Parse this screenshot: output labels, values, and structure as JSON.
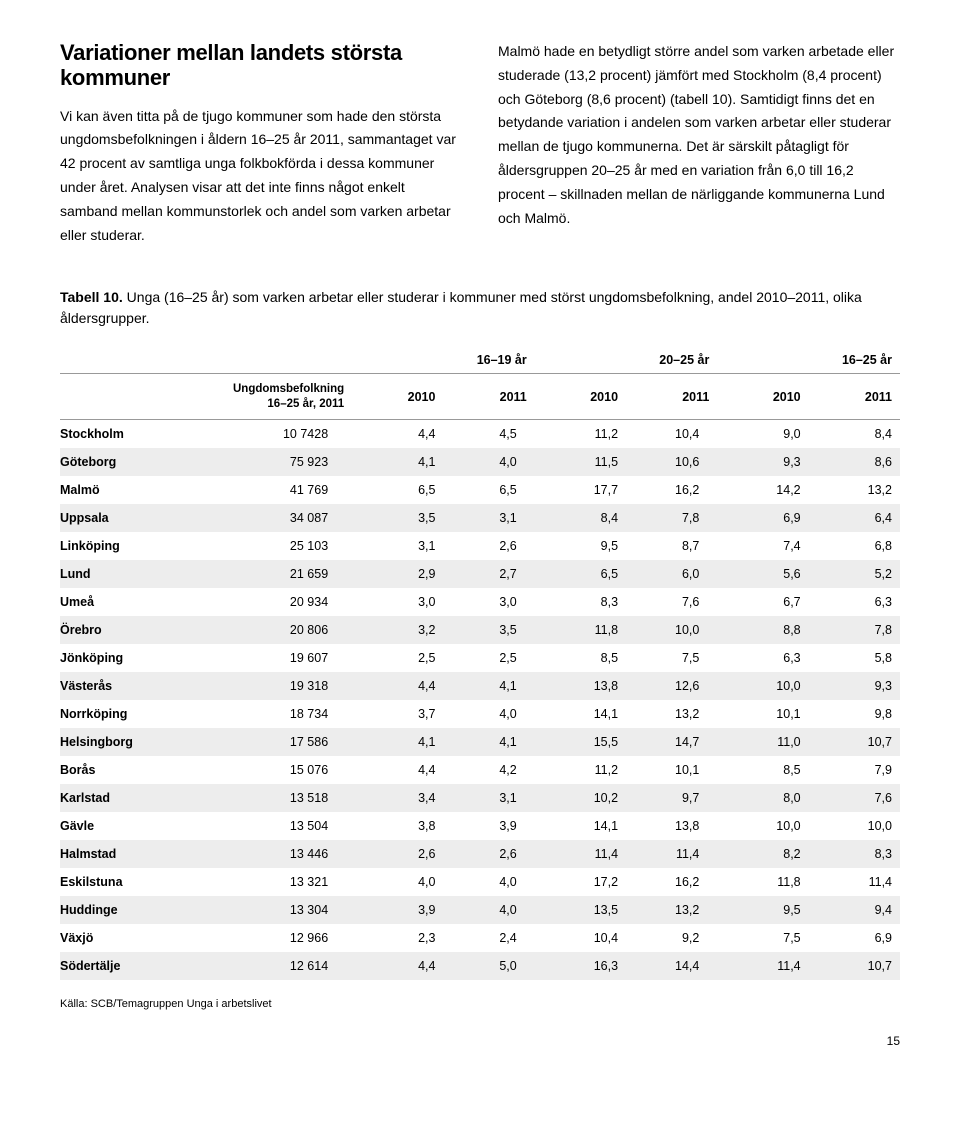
{
  "section_title": "Variationer mellan landets största kommuner",
  "left_para": "Vi kan även titta på de tjugo kommuner som hade den största ungdomsbefolkningen i åldern 16–25 år 2011, sammantaget var 42 procent av samtliga unga folkbokförda i dessa kommuner under året. Analysen visar att det inte finns något enkelt samband mellan kommunstorlek och andel som varken arbetar eller studerar.",
  "right_para": "Malmö hade en betydligt större andel som varken arbetade eller studerade (13,2 procent) jämfört med Stockholm (8,4 procent) och Göteborg (8,6 procent) (tabell 10). Samtidigt finns det en betydande variation i andelen som varken arbetar eller studerar mellan de tjugo kommunerna. Det är särskilt påtagligt för åldersgruppen 20–25 år med en variation från 6,0 till 16,2 procent – skillnaden mellan de närliggande kommunerna Lund och Malmö.",
  "table_caption_bold": "Tabell 10.",
  "table_caption_rest": " Unga (16–25 år) som varken arbetar eller studerar i kommuner med störst ungdomsbefolkning, andel 2010–2011, olika åldersgrupper.",
  "pop_header_l1": "Ungdomsbefolkning",
  "pop_header_l2": "16–25 år, 2011",
  "age_groups": [
    "16–19 år",
    "20–25 år",
    "16–25 år"
  ],
  "years": [
    "2010",
    "2011",
    "2010",
    "2011",
    "2010",
    "2011"
  ],
  "rows": [
    {
      "city": "Stockholm",
      "pop": "10 7428",
      "v": [
        "4,4",
        "4,5",
        "11,2",
        "10,4",
        "9,0",
        "8,4"
      ]
    },
    {
      "city": "Göteborg",
      "pop": "75 923",
      "v": [
        "4,1",
        "4,0",
        "11,5",
        "10,6",
        "9,3",
        "8,6"
      ]
    },
    {
      "city": "Malmö",
      "pop": "41 769",
      "v": [
        "6,5",
        "6,5",
        "17,7",
        "16,2",
        "14,2",
        "13,2"
      ]
    },
    {
      "city": "Uppsala",
      "pop": "34 087",
      "v": [
        "3,5",
        "3,1",
        "8,4",
        "7,8",
        "6,9",
        "6,4"
      ]
    },
    {
      "city": "Linköping",
      "pop": "25 103",
      "v": [
        "3,1",
        "2,6",
        "9,5",
        "8,7",
        "7,4",
        "6,8"
      ]
    },
    {
      "city": "Lund",
      "pop": "21 659",
      "v": [
        "2,9",
        "2,7",
        "6,5",
        "6,0",
        "5,6",
        "5,2"
      ]
    },
    {
      "city": "Umeå",
      "pop": "20 934",
      "v": [
        "3,0",
        "3,0",
        "8,3",
        "7,6",
        "6,7",
        "6,3"
      ]
    },
    {
      "city": "Örebro",
      "pop": "20 806",
      "v": [
        "3,2",
        "3,5",
        "11,8",
        "10,0",
        "8,8",
        "7,8"
      ]
    },
    {
      "city": "Jönköping",
      "pop": "19 607",
      "v": [
        "2,5",
        "2,5",
        "8,5",
        "7,5",
        "6,3",
        "5,8"
      ]
    },
    {
      "city": "Västerås",
      "pop": "19 318",
      "v": [
        "4,4",
        "4,1",
        "13,8",
        "12,6",
        "10,0",
        "9,3"
      ]
    },
    {
      "city": "Norrköping",
      "pop": "18 734",
      "v": [
        "3,7",
        "4,0",
        "14,1",
        "13,2",
        "10,1",
        "9,8"
      ]
    },
    {
      "city": "Helsingborg",
      "pop": "17 586",
      "v": [
        "4,1",
        "4,1",
        "15,5",
        "14,7",
        "11,0",
        "10,7"
      ]
    },
    {
      "city": "Borås",
      "pop": "15 076",
      "v": [
        "4,4",
        "4,2",
        "11,2",
        "10,1",
        "8,5",
        "7,9"
      ]
    },
    {
      "city": "Karlstad",
      "pop": "13 518",
      "v": [
        "3,4",
        "3,1",
        "10,2",
        "9,7",
        "8,0",
        "7,6"
      ]
    },
    {
      "city": "Gävle",
      "pop": "13 504",
      "v": [
        "3,8",
        "3,9",
        "14,1",
        "13,8",
        "10,0",
        "10,0"
      ]
    },
    {
      "city": "Halmstad",
      "pop": "13 446",
      "v": [
        "2,6",
        "2,6",
        "11,4",
        "11,4",
        "8,2",
        "8,3"
      ]
    },
    {
      "city": "Eskilstuna",
      "pop": "13 321",
      "v": [
        "4,0",
        "4,0",
        "17,2",
        "16,2",
        "11,8",
        "11,4"
      ]
    },
    {
      "city": "Huddinge",
      "pop": "13 304",
      "v": [
        "3,9",
        "4,0",
        "13,5",
        "13,2",
        "9,5",
        "9,4"
      ]
    },
    {
      "city": "Växjö",
      "pop": "12 966",
      "v": [
        "2,3",
        "2,4",
        "10,4",
        "9,2",
        "7,5",
        "6,9"
      ]
    },
    {
      "city": "Södertälje",
      "pop": "12 614",
      "v": [
        "4,4",
        "5,0",
        "16,3",
        "14,4",
        "11,4",
        "10,7"
      ]
    }
  ],
  "source": "Källa: SCB/Temagruppen Unga i arbetslivet",
  "page_number": "15",
  "colors": {
    "shade": "#ededed",
    "rule": "#999999",
    "text": "#000000",
    "bg": "#ffffff"
  }
}
